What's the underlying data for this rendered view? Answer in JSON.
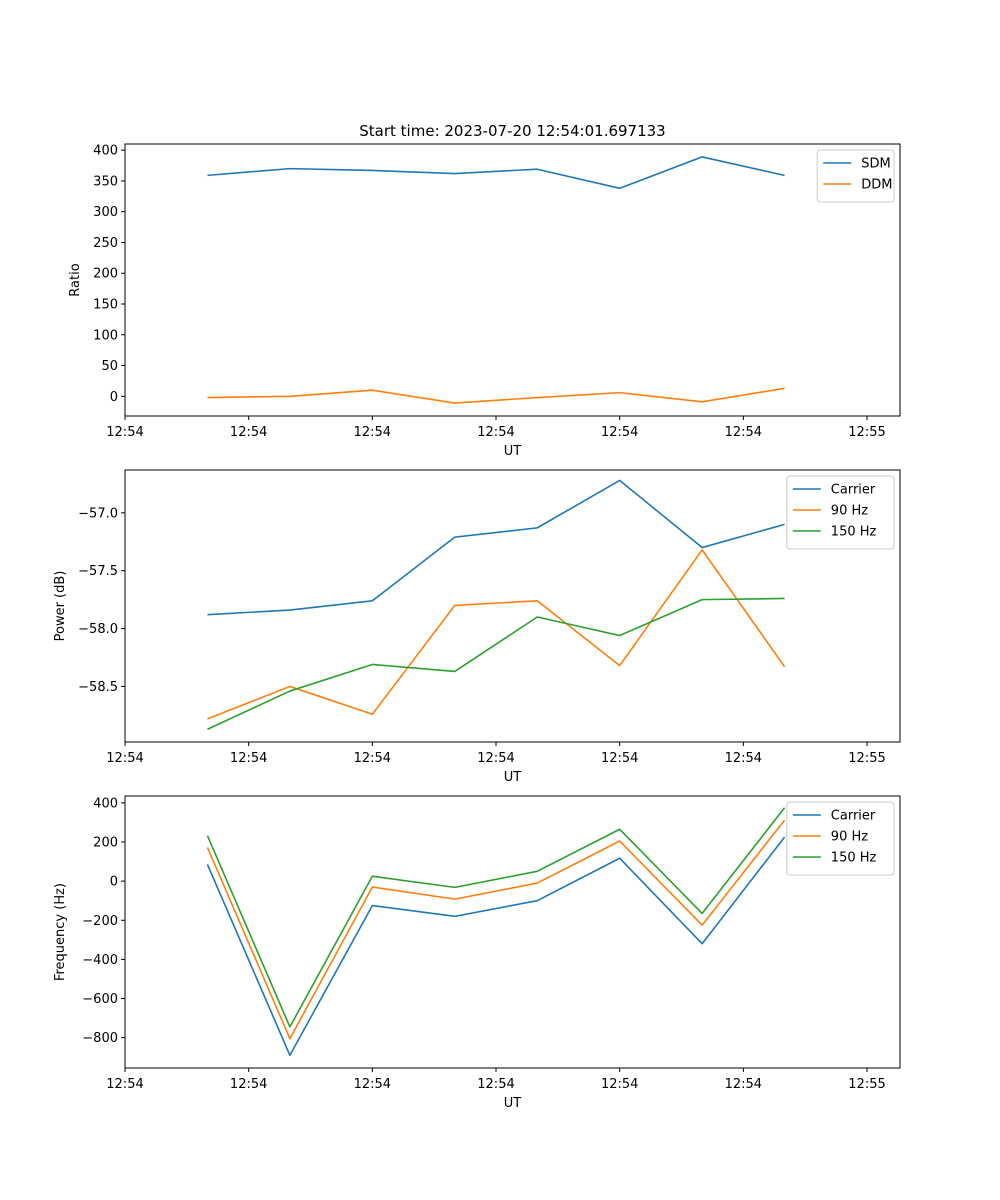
{
  "chart_data": [
    {
      "type": "line",
      "title": "Start time: 2023-07-20 12:54:01.697133",
      "xlabel": "UT",
      "ylabel": "Ratio",
      "x_index": [
        1,
        2,
        3,
        4,
        5,
        6,
        7,
        8
      ],
      "xlim": [
        0,
        9.4
      ],
      "x_ticks": [
        0,
        1.5,
        3,
        4.5,
        6,
        7.5,
        9
      ],
      "x_tick_labels": [
        "12:54",
        "12:54",
        "12:54",
        "12:54",
        "12:54",
        "12:54",
        "12:55"
      ],
      "ylim": [
        -32,
        410
      ],
      "y_ticks": [
        0,
        50,
        100,
        150,
        200,
        250,
        300,
        350,
        400
      ],
      "y_tick_labels": [
        "0",
        "50",
        "100",
        "150",
        "200",
        "250",
        "300",
        "350",
        "400"
      ],
      "legend_position": "top-right",
      "series": [
        {
          "name": "SDM",
          "color": "#1f77b4",
          "values": [
            359,
            370,
            367,
            362,
            369,
            338,
            389,
            359
          ]
        },
        {
          "name": "DDM",
          "color": "#ff7f0e",
          "values": [
            -2,
            0,
            10,
            -11,
            -2,
            6,
            -9,
            13
          ]
        }
      ]
    },
    {
      "type": "line",
      "title": "",
      "xlabel": "UT",
      "ylabel": "Power (dB)",
      "x_index": [
        1,
        2,
        3,
        4,
        5,
        6,
        7,
        8
      ],
      "xlim": [
        0,
        9.4
      ],
      "x_ticks": [
        0,
        1.5,
        3,
        4.5,
        6,
        7.5,
        9
      ],
      "x_tick_labels": [
        "12:54",
        "12:54",
        "12:54",
        "12:54",
        "12:54",
        "12:54",
        "12:55"
      ],
      "ylim": [
        -58.98,
        -56.63
      ],
      "y_ticks": [
        -58.5,
        -58.0,
        -57.5,
        -57.0
      ],
      "y_tick_labels": [
        "−58.5",
        "−58.0",
        "−57.5",
        "−57.0"
      ],
      "legend_position": "top-right",
      "series": [
        {
          "name": "Carrier",
          "color": "#1f77b4",
          "values": [
            -57.88,
            -57.84,
            -57.76,
            -57.21,
            -57.13,
            -56.72,
            -57.3,
            -57.1
          ]
        },
        {
          "name": "90 Hz",
          "color": "#ff7f0e",
          "values": [
            -58.78,
            -58.5,
            -58.74,
            -57.8,
            -57.76,
            -58.32,
            -57.32,
            -58.33
          ]
        },
        {
          "name": "150 Hz",
          "color": "#2ca02c",
          "values": [
            -58.87,
            -58.54,
            -58.31,
            -58.37,
            -57.9,
            -58.06,
            -57.75,
            -57.74
          ]
        }
      ]
    },
    {
      "type": "line",
      "title": "",
      "xlabel": "UT",
      "ylabel": "Frequency (Hz)",
      "x_index": [
        1,
        2,
        3,
        4,
        5,
        6,
        7,
        8
      ],
      "xlim": [
        0,
        9.4
      ],
      "x_ticks": [
        0,
        1.5,
        3,
        4.5,
        6,
        7.5,
        9
      ],
      "x_tick_labels": [
        "12:54",
        "12:54",
        "12:54",
        "12:54",
        "12:54",
        "12:54",
        "12:55"
      ],
      "ylim": [
        -955,
        435
      ],
      "y_ticks": [
        -800,
        -600,
        -400,
        -200,
        0,
        200,
        400
      ],
      "y_tick_labels": [
        "−800",
        "−600",
        "−400",
        "−200",
        "0",
        "200",
        "400"
      ],
      "legend_position": "top-right",
      "series": [
        {
          "name": "Carrier",
          "color": "#1f77b4",
          "values": [
            85,
            -890,
            -125,
            -180,
            -100,
            117,
            -320,
            225
          ]
        },
        {
          "name": "90 Hz",
          "color": "#ff7f0e",
          "values": [
            172,
            -805,
            -30,
            -92,
            -10,
            205,
            -225,
            312
          ]
        },
        {
          "name": "150 Hz",
          "color": "#2ca02c",
          "values": [
            232,
            -745,
            25,
            -32,
            50,
            265,
            -165,
            375
          ]
        }
      ]
    }
  ]
}
